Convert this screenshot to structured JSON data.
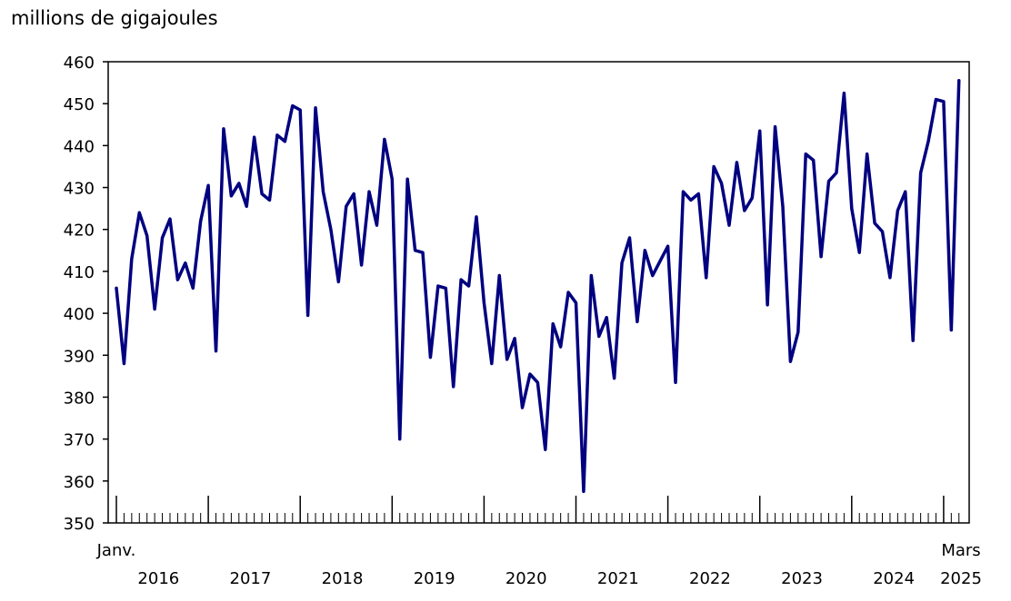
{
  "chart_data": {
    "type": "line",
    "title": "",
    "ylabel": "millions de gigajoules",
    "xlabel": "",
    "ylim": [
      350,
      460
    ],
    "yticks": [
      350,
      360,
      370,
      380,
      390,
      400,
      410,
      420,
      430,
      440,
      450,
      460
    ],
    "x_start_label": "Janv.",
    "x_end_label": "Mars",
    "year_labels": [
      "2016",
      "2017",
      "2018",
      "2019",
      "2020",
      "2021",
      "2022",
      "2023",
      "2024",
      "2025"
    ],
    "grid": false,
    "line_color": "#000080",
    "series": [
      {
        "values": [
          406,
          388,
          413,
          424,
          418.5,
          401,
          418,
          422.5,
          408,
          412,
          406,
          422,
          430.5,
          391,
          444,
          428,
          431,
          425.5,
          442,
          428.5,
          427,
          442.5,
          441,
          449.5,
          448.5,
          399.5,
          449,
          429,
          420,
          407.5,
          425.5,
          428.5,
          411.5,
          429,
          421,
          441.5,
          432,
          370,
          432,
          415,
          414.5,
          389.5,
          406.5,
          406,
          382.5,
          408,
          406.5,
          423,
          402.5,
          388,
          409,
          389,
          394,
          377.5,
          385.5,
          383.5,
          367.5,
          397.5,
          392,
          405,
          402.5,
          357.5,
          409,
          394.5,
          399,
          384.5,
          412,
          418,
          398,
          415,
          409,
          412.5,
          416,
          383.5,
          429,
          427,
          428.5,
          408.5,
          435,
          431,
          421,
          436,
          424.5,
          427.5,
          443.5,
          402,
          444.5,
          425.5,
          388.5,
          395.5,
          438,
          436.5,
          413.5,
          431.5,
          433.5,
          452.5,
          425,
          414.5,
          438,
          421.5,
          419.5,
          408.5,
          424.5,
          429,
          393.5,
          433.5,
          441,
          451,
          450.5,
          396,
          455.5
        ]
      }
    ]
  }
}
